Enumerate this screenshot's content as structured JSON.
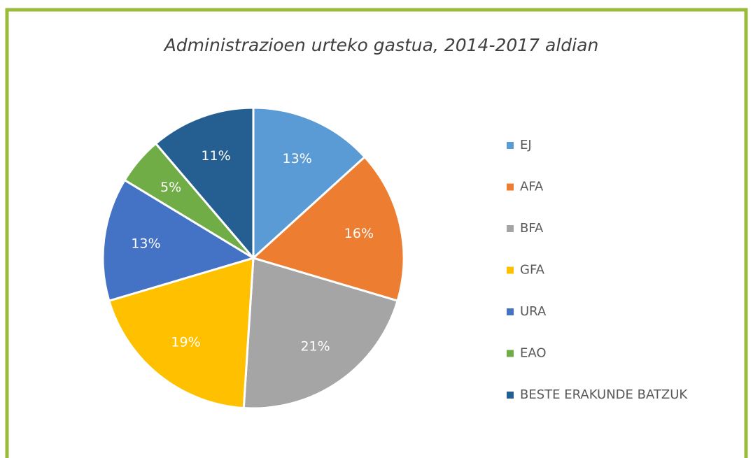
{
  "chart_data": {
    "type": "pie",
    "title": "Administrazioen urteko gastua, 2014-2017 aldian",
    "categories": [
      "EJ",
      "AFA",
      "BFA",
      "GFA",
      "URA",
      "EAO",
      "BESTE ERAKUNDE BATZUK"
    ],
    "values": [
      13,
      16,
      21,
      19,
      13,
      5,
      11
    ],
    "value_labels": [
      "13%",
      "16%",
      "21%",
      "19%",
      "13%",
      "5%",
      "11%"
    ],
    "colors": [
      "#5b9bd5",
      "#ed7d31",
      "#a5a5a5",
      "#ffc000",
      "#4472c4",
      "#70ad47",
      "#255e91"
    ],
    "legend": "right"
  }
}
